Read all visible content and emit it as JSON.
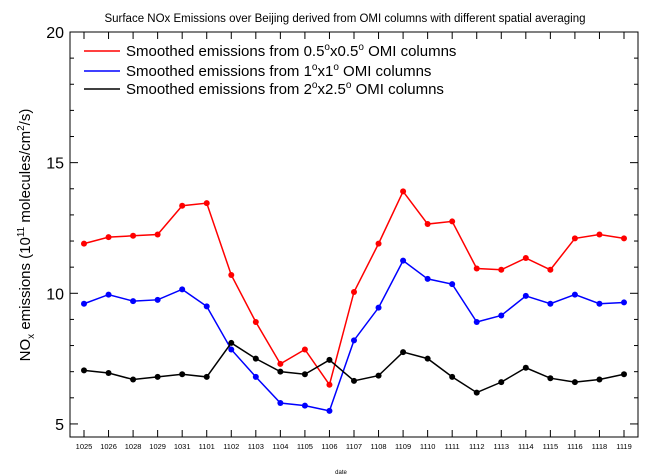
{
  "chart_data": {
    "type": "line",
    "title": "Surface NOx Emissions over Beijing derived from OMI columns with different spatial averaging",
    "xlabel": "date",
    "ylabel": "NOx emissions (10^11 molecules/cm^2/s)",
    "ylabel_parts": {
      "a": "NO",
      "b": "x",
      "c": " emissions (10",
      "d": "11",
      "e": " molecules/cm",
      "f": "2",
      "g": "/s)"
    },
    "ylim": [
      4.5,
      20
    ],
    "yticks": [
      5,
      10,
      15,
      20
    ],
    "grid": false,
    "legend_position": "top-left",
    "categories": [
      "1025",
      "1026",
      "1028",
      "1029",
      "1031",
      "1101",
      "1102",
      "1103",
      "1104",
      "1105",
      "1106",
      "1107",
      "1108",
      "1109",
      "1110",
      "1111",
      "1112",
      "1113",
      "1114",
      "1115",
      "1116",
      "1118",
      "1119"
    ],
    "series": [
      {
        "name": "Smoothed emissions from 0.5°x0.5° OMI columns",
        "legend_parts": {
          "a": "Smoothed emissions from 0.5",
          "b": "o",
          "c": "x0.5",
          "d": "o",
          "e": " OMI columns"
        },
        "color": "#ff0000",
        "values": [
          11.9,
          12.15,
          12.2,
          12.25,
          13.35,
          13.45,
          10.7,
          8.9,
          7.3,
          7.85,
          6.5,
          10.05,
          11.9,
          13.9,
          12.65,
          12.75,
          10.95,
          10.9,
          11.35,
          10.9,
          12.1,
          12.25,
          12.1
        ]
      },
      {
        "name": "Smoothed emissions from 1°x1° OMI columns",
        "legend_parts": {
          "a": "Smoothed emissions from 1",
          "b": "o",
          "c": "x1",
          "d": "o",
          "e": " OMI columns"
        },
        "color": "#0000ff",
        "values": [
          9.6,
          9.95,
          9.7,
          9.75,
          10.15,
          9.5,
          7.85,
          6.8,
          5.8,
          5.7,
          5.5,
          8.2,
          9.45,
          11.25,
          10.55,
          10.35,
          8.9,
          9.15,
          9.9,
          9.6,
          9.95,
          9.6,
          9.65
        ]
      },
      {
        "name": "Smoothed emissions from 2°x2.5° OMI columns",
        "legend_parts": {
          "a": "Smoothed emissions from 2",
          "b": "o",
          "c": "x2.5",
          "d": "o",
          "e": " OMI columns"
        },
        "color": "#000000",
        "values": [
          7.05,
          6.95,
          6.7,
          6.8,
          6.9,
          6.8,
          8.1,
          7.5,
          7.0,
          6.9,
          7.45,
          6.65,
          6.85,
          7.75,
          7.5,
          6.8,
          6.2,
          6.6,
          7.15,
          6.75,
          6.6,
          6.7,
          6.9
        ]
      }
    ]
  }
}
